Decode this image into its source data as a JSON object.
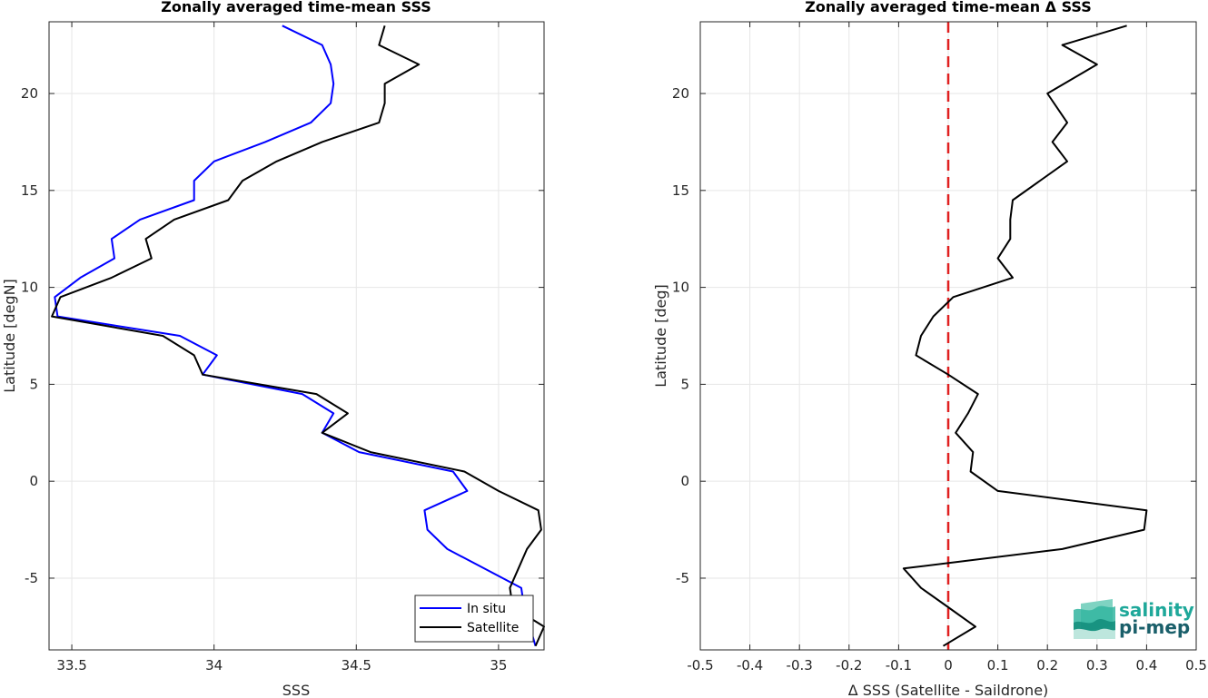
{
  "logo": {
    "line1": "salinity",
    "line2": "pi-mep",
    "color": "#1ea89a"
  },
  "chart_data": [
    {
      "type": "line",
      "title": "Zonally averaged time-mean SSS",
      "xlabel": "SSS",
      "ylabel": "Latitude [degN]",
      "xlim": [
        33.42,
        35.16
      ],
      "ylim": [
        -8.7,
        23.7
      ],
      "xticks": [
        33.5,
        34,
        34.5,
        35
      ],
      "xtick_labels": [
        "33.5",
        "34",
        "34.5",
        "35"
      ],
      "yticks": [
        -5,
        0,
        5,
        10,
        15,
        20
      ],
      "ytick_labels": [
        "-5",
        "0",
        "5",
        "10",
        "15",
        "20"
      ],
      "grid": true,
      "legend": {
        "position": "bottom-right",
        "entries": [
          "In situ",
          "Satellite"
        ]
      },
      "series": [
        {
          "name": "In situ",
          "color": "#0000ff",
          "points": [
            [
              35.13,
              -8.5
            ],
            [
              35.09,
              -6.5
            ],
            [
              35.08,
              -5.5
            ],
            [
              34.82,
              -3.5
            ],
            [
              34.75,
              -2.5
            ],
            [
              34.74,
              -1.5
            ],
            [
              34.89,
              -0.5
            ],
            [
              34.84,
              0.5
            ],
            [
              34.51,
              1.5
            ],
            [
              34.38,
              2.5
            ],
            [
              34.42,
              3.5
            ],
            [
              34.31,
              4.5
            ],
            [
              33.96,
              5.5
            ],
            [
              34.01,
              6.5
            ],
            [
              33.88,
              7.5
            ],
            [
              33.45,
              8.5
            ],
            [
              33.44,
              9.5
            ],
            [
              33.53,
              10.5
            ],
            [
              33.65,
              11.5
            ],
            [
              33.64,
              12.5
            ],
            [
              33.74,
              13.5
            ],
            [
              33.93,
              14.5
            ],
            [
              33.93,
              15.5
            ],
            [
              34.0,
              16.5
            ],
            [
              34.18,
              17.5
            ],
            [
              34.34,
              18.5
            ],
            [
              34.41,
              19.5
            ],
            [
              34.42,
              20.5
            ],
            [
              34.41,
              21.5
            ],
            [
              34.38,
              22.5
            ],
            [
              34.24,
              23.5
            ]
          ]
        },
        {
          "name": "Satellite",
          "color": "#000000",
          "points": [
            [
              35.13,
              -8.5
            ],
            [
              35.16,
              -7.5
            ],
            [
              35.05,
              -6.5
            ],
            [
              35.04,
              -5.5
            ],
            [
              35.07,
              -4.5
            ],
            [
              35.1,
              -3.5
            ],
            [
              35.15,
              -2.5
            ],
            [
              35.14,
              -1.5
            ],
            [
              35.0,
              -0.5
            ],
            [
              34.88,
              0.5
            ],
            [
              34.55,
              1.5
            ],
            [
              34.38,
              2.5
            ],
            [
              34.47,
              3.5
            ],
            [
              34.36,
              4.5
            ],
            [
              33.96,
              5.5
            ],
            [
              33.93,
              6.5
            ],
            [
              33.82,
              7.5
            ],
            [
              33.43,
              8.5
            ],
            [
              33.46,
              9.5
            ],
            [
              33.64,
              10.5
            ],
            [
              33.78,
              11.5
            ],
            [
              33.76,
              12.5
            ],
            [
              33.86,
              13.5
            ],
            [
              34.05,
              14.5
            ],
            [
              34.1,
              15.5
            ],
            [
              34.22,
              16.5
            ],
            [
              34.38,
              17.5
            ],
            [
              34.58,
              18.5
            ],
            [
              34.6,
              19.5
            ],
            [
              34.6,
              20.5
            ],
            [
              34.72,
              21.5
            ],
            [
              34.58,
              22.5
            ],
            [
              34.6,
              23.5
            ]
          ]
        }
      ]
    },
    {
      "type": "line",
      "title": "Zonally averaged time-mean Δ SSS",
      "xlabel": "Δ SSS (Satellite - Saildrone)",
      "ylabel": "Latitude [deg]",
      "xlim": [
        -0.5,
        0.5
      ],
      "ylim": [
        -8.7,
        23.7
      ],
      "xticks": [
        -0.5,
        -0.4,
        -0.3,
        -0.2,
        -0.1,
        0,
        0.1,
        0.2,
        0.3,
        0.4,
        0.5
      ],
      "xtick_labels": [
        "-0.5",
        "-0.4",
        "-0.3",
        "-0.2",
        "-0.1",
        "0",
        "0.1",
        "0.2",
        "0.3",
        "0.4",
        "0.5"
      ],
      "yticks": [
        -5,
        0,
        5,
        10,
        15,
        20
      ],
      "ytick_labels": [
        "-5",
        "0",
        "5",
        "10",
        "15",
        "20"
      ],
      "grid": true,
      "reference_line": {
        "x": 0,
        "color": "#e02020",
        "style": "dashed"
      },
      "series": [
        {
          "color": "#000000",
          "points": [
            [
              -0.01,
              -8.5
            ],
            [
              0.055,
              -7.5
            ],
            [
              0.0,
              -6.5
            ],
            [
              -0.055,
              -5.5
            ],
            [
              -0.09,
              -4.5
            ],
            [
              0.23,
              -3.5
            ],
            [
              0.395,
              -2.5
            ],
            [
              0.4,
              -1.5
            ],
            [
              0.1,
              -0.5
            ],
            [
              0.045,
              0.5
            ],
            [
              0.05,
              1.5
            ],
            [
              0.015,
              2.5
            ],
            [
              0.04,
              3.5
            ],
            [
              0.06,
              4.5
            ],
            [
              0.0,
              5.5
            ],
            [
              -0.065,
              6.5
            ],
            [
              -0.055,
              7.5
            ],
            [
              -0.03,
              8.5
            ],
            [
              0.01,
              9.5
            ],
            [
              0.13,
              10.5
            ],
            [
              0.1,
              11.5
            ],
            [
              0.125,
              12.5
            ],
            [
              0.125,
              13.5
            ],
            [
              0.13,
              14.5
            ],
            [
              0.24,
              16.5
            ],
            [
              0.21,
              17.5
            ],
            [
              0.24,
              18.5
            ],
            [
              0.2,
              20.0
            ],
            [
              0.3,
              21.5
            ],
            [
              0.23,
              22.5
            ],
            [
              0.36,
              23.5
            ]
          ]
        }
      ]
    }
  ]
}
